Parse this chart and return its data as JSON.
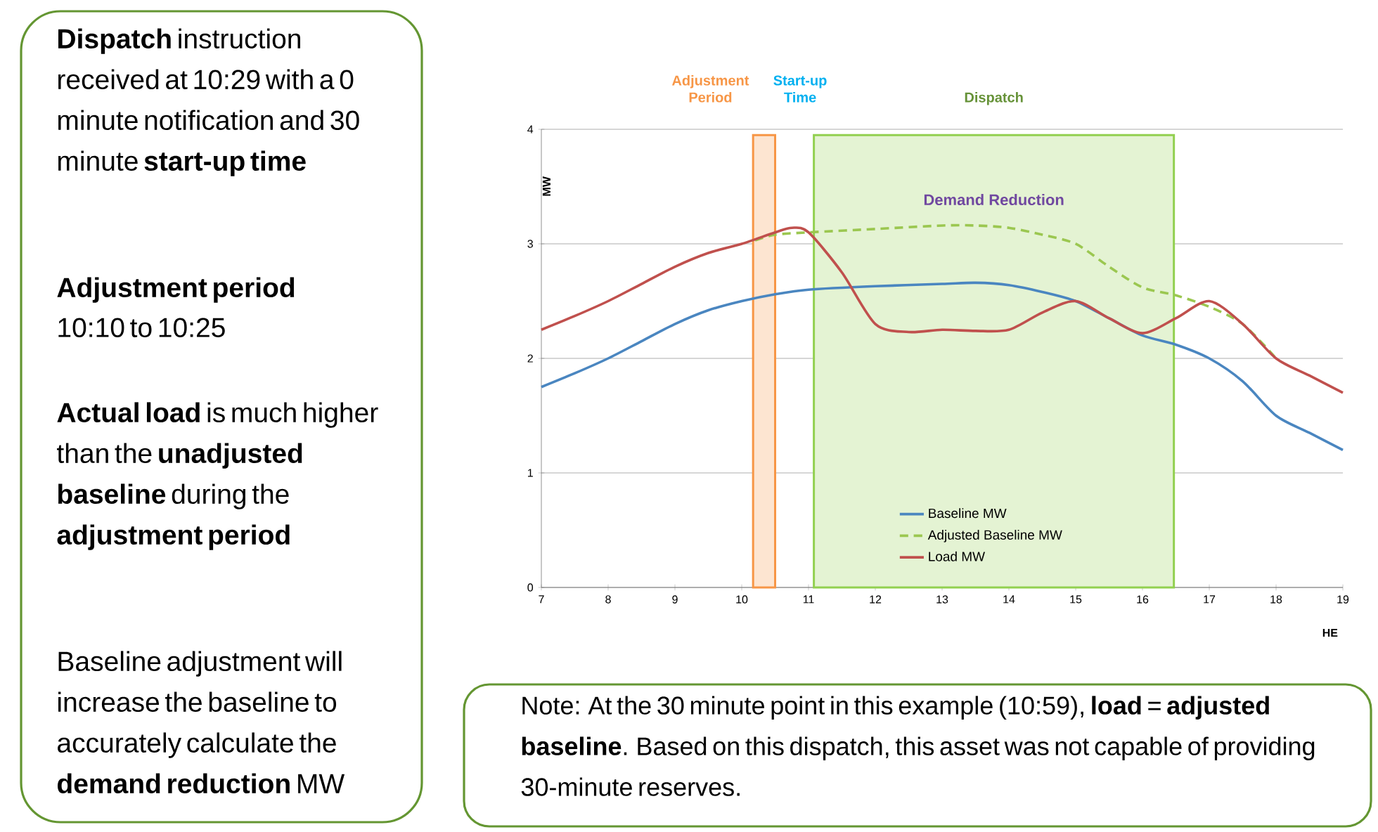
{
  "chart_data": {
    "type": "line",
    "xlabel": "HE",
    "ylabel": "MW",
    "xlim": [
      7,
      19
    ],
    "ylim": [
      0,
      4
    ],
    "xticks": [
      7,
      8,
      9,
      10,
      11,
      12,
      13,
      14,
      15,
      16,
      17,
      18,
      19
    ],
    "yticks": [
      0,
      1,
      2,
      3,
      4
    ],
    "grid": "y",
    "legend": "bottom",
    "marker": "none",
    "series": [
      {
        "name": "Baseline MW",
        "color": "#4a86c0",
        "line_style": "solid",
        "x": [
          7,
          7.5,
          8,
          8.5,
          9,
          9.5,
          10,
          10.5,
          11,
          12,
          13,
          13.5,
          14,
          14.5,
          15,
          15.5,
          16,
          16.5,
          17,
          17.5,
          18,
          18.5,
          19
        ],
        "values": [
          1.75,
          1.87,
          2.0,
          2.15,
          2.3,
          2.42,
          2.5,
          2.56,
          2.6,
          2.63,
          2.65,
          2.66,
          2.64,
          2.58,
          2.5,
          2.35,
          2.2,
          2.12,
          2.0,
          1.8,
          1.5,
          1.35,
          1.2
        ]
      },
      {
        "name": "Adjusted Baseline  MW",
        "color": "#9bc750",
        "line_style": "dashed",
        "x": [
          10.2,
          10.5,
          11,
          12,
          13,
          13.5,
          14,
          14.5,
          15,
          15.5,
          16,
          16.5,
          17,
          17.5,
          18
        ],
        "values": [
          3.03,
          3.08,
          3.1,
          3.13,
          3.16,
          3.16,
          3.14,
          3.08,
          3.0,
          2.8,
          2.62,
          2.55,
          2.45,
          2.3,
          2.0
        ]
      },
      {
        "name": "Load MW",
        "color": "#c0504d",
        "line_style": "solid",
        "x": [
          7,
          7.5,
          8,
          8.5,
          9,
          9.5,
          10,
          10.5,
          10.75,
          11,
          11.5,
          12,
          12.5,
          13,
          13.5,
          14,
          14.5,
          15,
          15.5,
          16,
          16.5,
          17,
          17.5,
          18,
          18.5,
          19
        ],
        "values": [
          2.25,
          2.37,
          2.5,
          2.65,
          2.8,
          2.92,
          3.0,
          3.1,
          3.14,
          3.1,
          2.75,
          2.3,
          2.23,
          2.25,
          2.24,
          2.25,
          2.4,
          2.5,
          2.35,
          2.22,
          2.35,
          2.5,
          2.3,
          2.0,
          1.85,
          1.7
        ]
      }
    ],
    "bands": [
      {
        "axis": "x",
        "from": 10.17,
        "to": 10.5,
        "label": "Adjustment Period",
        "color": "#f79646"
      },
      {
        "axis": "x",
        "from": 11.08,
        "to": 16.47,
        "label": "Dispatch",
        "color": "#92d050"
      }
    ],
    "annotations": [
      "**Dispatch** instruction received at 10:29 with a 0 minute notification and 30 minute **start-up time**",
      "**Adjustment period**",
      "10:10 to 10:25",
      "**Actual load** is much higher than the **unadjusted baseline** during the **adjustment period**",
      "Baseline adjustment will increase the baseline to accurately calculate the **demand reduction** MW",
      "Note: At the 30 minute point in this example (10:59), **load** = **adjusted baseline**. Based on this dispatch, this asset was not capable of providing 30-minute reserves.",
      "Demand Reduction",
      "Start-up Time"
    ]
  }
}
